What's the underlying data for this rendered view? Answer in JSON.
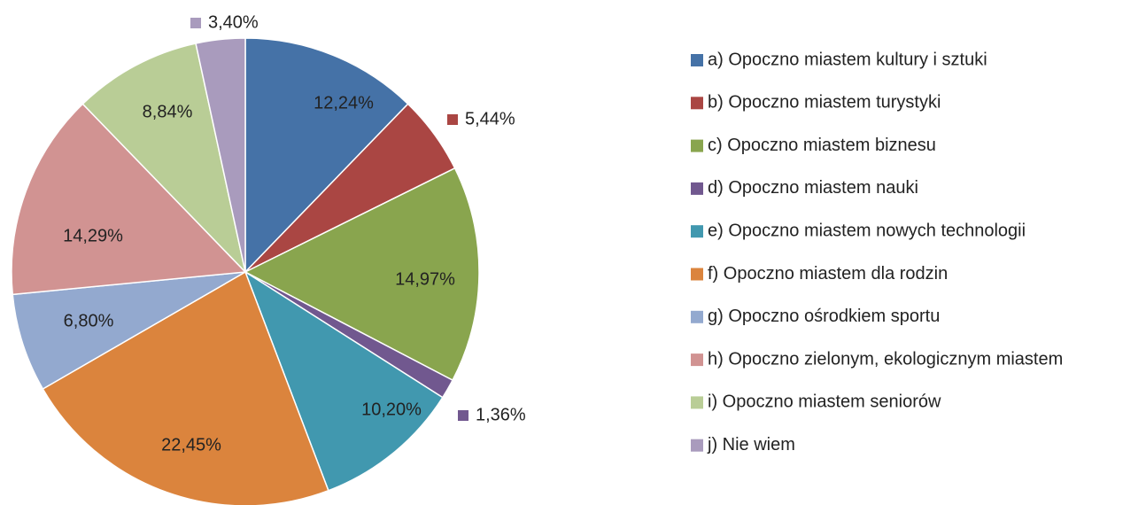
{
  "chart_data": {
    "type": "pie",
    "categories": [
      "a) Opoczno miastem kultury i sztuki",
      "b) Opoczno miastem turystyki",
      "c) Opoczno miastem biznesu",
      "d) Opoczno miastem nauki",
      "e) Opoczno miastem nowych technologii",
      "f) Opoczno miastem dla rodzin",
      "g) Opoczno ośrodkiem sportu",
      "h) Opoczno zielonym, ekologicznym miastem",
      "i) Opoczno miastem seniorów",
      "j) Nie wiem"
    ],
    "values": [
      12.24,
      5.44,
      14.97,
      1.36,
      10.2,
      22.45,
      6.8,
      14.29,
      8.84,
      3.4
    ],
    "value_labels": [
      "12,24%",
      "5,44%",
      "14,97%",
      "1,36%",
      "10,20%",
      "22,45%",
      "6,80%",
      "14,29%",
      "8,84%",
      "3,40%"
    ],
    "colors": [
      "#4572a7",
      "#aa4643",
      "#89a54e",
      "#71588f",
      "#4198af",
      "#db843d",
      "#93a9cf",
      "#d19392",
      "#b9cd96",
      "#a99bbd"
    ],
    "legend": "right"
  }
}
